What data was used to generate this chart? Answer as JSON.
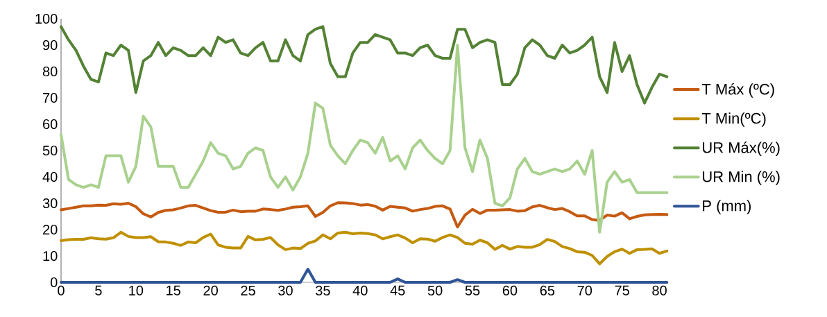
{
  "chart_data": {
    "type": "line",
    "x": [
      0,
      1,
      2,
      3,
      4,
      5,
      6,
      7,
      8,
      9,
      10,
      11,
      12,
      13,
      14,
      15,
      16,
      17,
      18,
      19,
      20,
      21,
      22,
      23,
      24,
      25,
      26,
      27,
      28,
      29,
      30,
      31,
      32,
      33,
      34,
      35,
      36,
      37,
      38,
      39,
      40,
      41,
      42,
      43,
      44,
      45,
      46,
      47,
      48,
      49,
      50,
      51,
      52,
      53,
      54,
      55,
      56,
      57,
      58,
      59,
      60,
      61,
      62,
      63,
      64,
      65,
      66,
      67,
      68,
      69,
      70,
      71,
      72,
      73,
      74,
      75,
      76,
      77,
      78,
      79,
      80,
      81
    ],
    "series": [
      {
        "name": "T Máx (ºC)",
        "color": "#c55a11",
        "values": [
          27.5,
          28,
          28.5,
          29,
          29,
          29.3,
          29.2,
          29.8,
          29.6,
          30,
          28.7,
          26,
          24.8,
          26.5,
          27.3,
          27.5,
          28.2,
          29,
          29.2,
          28.2,
          27.2,
          26.6,
          26.6,
          27.4,
          26.8,
          27,
          27,
          27.8,
          27.6,
          27.3,
          27.8,
          28.5,
          28.7,
          29,
          25,
          26.5,
          29,
          30.2,
          30.1,
          29.9,
          29.3,
          29.5,
          28.9,
          27.4,
          28.8,
          28.5,
          28.2,
          27,
          27.6,
          28,
          28.8,
          29,
          27.8,
          21,
          25.5,
          27.7,
          26.1,
          27.4,
          27.4,
          27.5,
          27.6,
          27,
          27.2,
          28.6,
          29.2,
          28.3,
          27.6,
          28,
          26.8,
          25.2,
          25.2,
          23.8,
          23.5,
          25.5,
          25.1,
          26.4,
          24.1,
          25,
          25.6,
          25.7,
          25.8,
          25.7
        ]
      },
      {
        "name": "T Min(ºC)",
        "color": "#bf9000",
        "values": [
          15.8,
          16.2,
          16.3,
          16.3,
          16.9,
          16.5,
          16.4,
          16.9,
          19,
          17.4,
          17,
          17,
          17.3,
          15.4,
          15.3,
          14.8,
          14,
          15.3,
          15,
          17,
          18.3,
          14.2,
          13.3,
          13,
          13,
          17.4,
          16.1,
          16.3,
          17,
          14.2,
          12.4,
          13,
          12.8,
          14.8,
          15.7,
          18,
          16.5,
          18.7,
          19,
          18.4,
          18.7,
          18.5,
          18,
          16.5,
          17.3,
          18,
          16.8,
          15,
          16.5,
          16.4,
          15.6,
          17,
          18,
          17,
          14.8,
          14.5,
          16,
          15,
          12.5,
          14,
          12.6,
          13.6,
          13.3,
          13.3,
          14.3,
          16.3,
          15.5,
          13.6,
          12.8,
          11.6,
          11.4,
          10.2,
          7,
          9.8,
          11.6,
          12.6,
          11,
          12.4,
          12.5,
          12.7,
          11,
          11.9
        ]
      },
      {
        "name": "UR Máx(%)",
        "color": "#548235",
        "values": [
          97,
          92,
          88,
          82,
          77,
          76,
          87,
          86,
          90,
          88,
          72,
          84,
          86,
          91,
          86,
          89,
          88,
          86,
          86,
          89,
          86,
          93,
          91,
          92,
          87,
          86,
          89,
          91,
          84,
          84,
          92,
          86,
          84,
          94,
          96,
          97,
          83,
          78,
          78,
          87,
          91,
          91,
          94,
          93,
          92,
          87,
          87,
          86,
          89,
          90,
          86,
          85,
          85,
          96,
          96,
          89,
          91,
          92,
          91,
          75,
          75,
          79,
          89,
          92,
          90,
          86,
          85,
          90,
          87,
          88,
          90,
          93,
          78,
          72,
          91,
          80,
          86,
          75,
          68,
          74,
          79,
          78
        ]
      },
      {
        "name": "UR Min (%)",
        "color": "#a9d18e",
        "values": [
          56,
          39,
          37,
          36,
          37,
          36,
          48,
          48,
          48,
          38,
          44,
          63,
          59,
          44,
          44,
          44,
          36,
          36,
          41,
          46,
          53,
          49,
          48,
          43,
          44,
          49,
          51,
          50,
          40,
          36,
          40,
          35,
          40,
          49,
          68,
          66,
          52,
          48,
          45,
          50,
          54,
          53,
          49,
          55,
          46,
          48,
          43,
          51,
          54,
          50,
          47,
          45,
          50,
          90,
          51,
          42,
          54,
          47,
          30,
          29,
          32,
          43,
          47,
          42,
          41,
          42,
          43,
          42,
          43,
          46,
          41,
          50,
          19,
          38,
          42,
          38,
          39,
          34,
          34,
          34,
          34,
          34
        ]
      },
      {
        "name": "P (mm)",
        "color": "#2f5597",
        "values": [
          0,
          0,
          0,
          0,
          0,
          0,
          0,
          0,
          0,
          0,
          0,
          0,
          0,
          0,
          0,
          0,
          0,
          0,
          0,
          0,
          0,
          0,
          0,
          0,
          0,
          0,
          0,
          0,
          0,
          0,
          0,
          0,
          0,
          5,
          0,
          0,
          0,
          0,
          0,
          0,
          0,
          0,
          0,
          0,
          0,
          1.3,
          0,
          0,
          0,
          0,
          0,
          0,
          0,
          1,
          0,
          0,
          0,
          0,
          0,
          0,
          0,
          0,
          0,
          0,
          0,
          0,
          0,
          0,
          0,
          0,
          0,
          0,
          0,
          0,
          0,
          0,
          0,
          0,
          0,
          0,
          0,
          0
        ]
      }
    ],
    "xlim": [
      0,
      81
    ],
    "ylim": [
      0,
      100
    ],
    "xticks": [
      0,
      5,
      10,
      15,
      20,
      25,
      30,
      35,
      40,
      45,
      50,
      55,
      60,
      65,
      70,
      75,
      80
    ],
    "yticks": [
      0,
      10,
      20,
      30,
      40,
      50,
      60,
      70,
      80,
      90,
      100
    ],
    "grid": false,
    "legend": "right",
    "marker": "none",
    "line_style": "solid"
  }
}
